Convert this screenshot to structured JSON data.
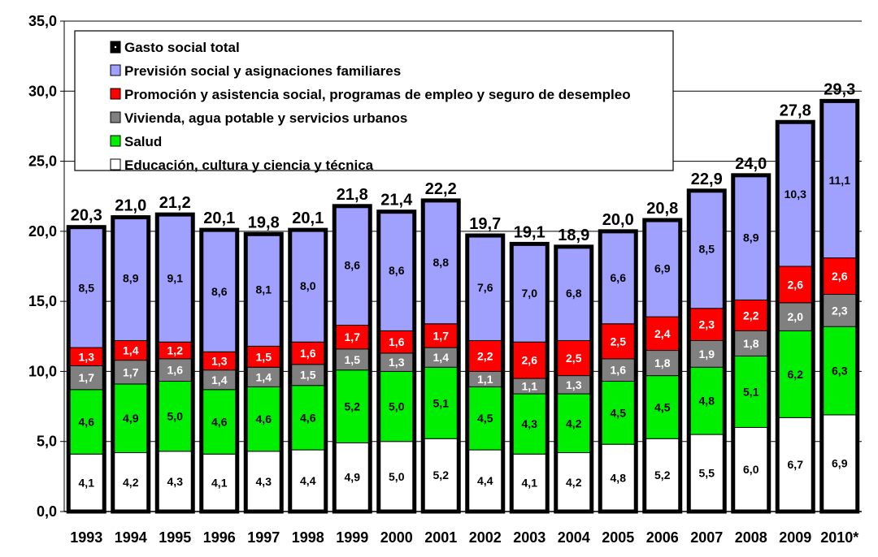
{
  "chart_data": {
    "type": "bar",
    "stacked": true,
    "categories": [
      "1993",
      "1994",
      "1995",
      "1996",
      "1997",
      "1998",
      "1999",
      "2000",
      "2001",
      "2002",
      "2003",
      "2004",
      "2005",
      "2006",
      "2007",
      "2008",
      "2009",
      "2010*"
    ],
    "ylim": [
      0,
      35
    ],
    "yticks": [
      "0,0",
      "5,0",
      "10,0",
      "15,0",
      "20,0",
      "25,0",
      "30,0",
      "35,0"
    ],
    "yticks_values": [
      0,
      5,
      10,
      15,
      20,
      25,
      30,
      35
    ],
    "grid": true,
    "legend_position": "top-left",
    "series": [
      {
        "name": "Educación, cultura y ciencia y técnica",
        "color": "#ffffff",
        "values": [
          4.1,
          4.2,
          4.3,
          4.1,
          4.3,
          4.4,
          4.9,
          5.0,
          5.2,
          4.4,
          4.1,
          4.2,
          4.8,
          5.2,
          5.5,
          6.0,
          6.7,
          6.9
        ],
        "labels": [
          "4,1",
          "4,2",
          "4,3",
          "4,1",
          "4,3",
          "4,4",
          "4,9",
          "5,0",
          "5,2",
          "4,4",
          "4,1",
          "4,2",
          "4,8",
          "5,2",
          "5,5",
          "6,0",
          "6,7",
          "6,9"
        ]
      },
      {
        "name": "Salud",
        "color": "#00ee00",
        "values": [
          4.6,
          4.9,
          5.0,
          4.6,
          4.6,
          4.6,
          5.2,
          5.0,
          5.1,
          4.5,
          4.3,
          4.2,
          4.5,
          4.5,
          4.8,
          5.1,
          6.2,
          6.3
        ],
        "labels": [
          "4,6",
          "4,9",
          "5,0",
          "4,6",
          "4,6",
          "4,6",
          "5,2",
          "5,0",
          "5,1",
          "4,5",
          "4,3",
          "4,2",
          "4,5",
          "4,5",
          "4,8",
          "5,1",
          "6,2",
          "6,3"
        ]
      },
      {
        "name": "Vivienda, agua potable y servicios urbanos",
        "color": "#808080",
        "values": [
          1.7,
          1.7,
          1.6,
          1.4,
          1.4,
          1.5,
          1.5,
          1.3,
          1.4,
          1.1,
          1.1,
          1.3,
          1.6,
          1.8,
          1.9,
          1.8,
          2.0,
          2.3
        ],
        "labels": [
          "1,7",
          "1,7",
          "1,6",
          "1,4",
          "1,4",
          "1,5",
          "1,5",
          "1,3",
          "1,4",
          "1,1",
          "1,1",
          "1,3",
          "1,6",
          "1,8",
          "1,9",
          "1,8",
          "2,0",
          "2,3"
        ]
      },
      {
        "name": "Promoción y asistencia social, programas de empleo y seguro de desempleo",
        "color": "#ff0000",
        "values": [
          1.3,
          1.4,
          1.2,
          1.3,
          1.5,
          1.6,
          1.7,
          1.6,
          1.7,
          2.2,
          2.6,
          2.5,
          2.5,
          2.4,
          2.3,
          2.2,
          2.6,
          2.6
        ],
        "labels": [
          "1,3",
          "1,4",
          "1,2",
          "1,3",
          "1,5",
          "1,6",
          "1,7",
          "1,6",
          "1,7",
          "2,2",
          "2,6",
          "2,5",
          "2,5",
          "2,4",
          "2,3",
          "2,2",
          "2,6",
          "2,6"
        ]
      },
      {
        "name": "Previsión social y asignaciones familiares",
        "color": "#a0a0ff",
        "values": [
          8.5,
          8.9,
          9.1,
          8.6,
          8.1,
          8.0,
          8.6,
          8.6,
          8.8,
          7.6,
          7.0,
          6.8,
          6.6,
          6.9,
          8.5,
          8.9,
          10.3,
          11.1
        ],
        "labels": [
          "8,5",
          "8,9",
          "9,1",
          "8,6",
          "8,1",
          "8,0",
          "8,6",
          "8,6",
          "8,8",
          "7,6",
          "7,0",
          "6,8",
          "6,6",
          "6,9",
          "8,5",
          "8,9",
          "10,3",
          "11,1"
        ]
      }
    ],
    "total": {
      "name": "Gasto social total",
      "values": [
        20.3,
        21.0,
        21.2,
        20.1,
        19.8,
        20.1,
        21.8,
        21.4,
        22.2,
        19.7,
        19.1,
        18.9,
        20.0,
        20.8,
        22.9,
        24.0,
        27.8,
        29.3
      ],
      "labels": [
        "20,3",
        "21,0",
        "21,2",
        "20,1",
        "19,8",
        "20,1",
        "21,8",
        "21,4",
        "22,2",
        "19,7",
        "19,1",
        "18,9",
        "20,0",
        "20,8",
        "22,9",
        "24,0",
        "27,8",
        "29,3"
      ]
    },
    "legend_order": [
      "Gasto social total",
      "Previsión social y asignaciones familiares",
      "Promoción y asistencia social, programas de empleo y seguro de desempleo",
      "Vivienda, agua potable y servicios urbanos",
      "Salud",
      "Educación, cultura y ciencia y técnica"
    ]
  }
}
